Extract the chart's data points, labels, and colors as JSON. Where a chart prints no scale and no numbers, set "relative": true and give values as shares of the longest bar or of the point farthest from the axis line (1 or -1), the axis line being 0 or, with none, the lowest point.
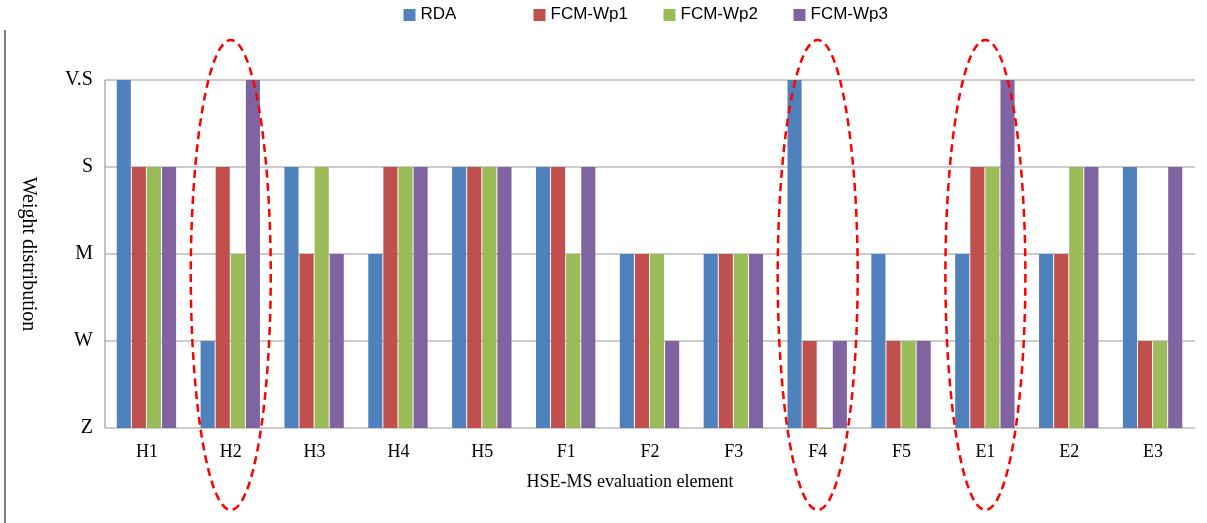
{
  "chart_data": {
    "type": "bar",
    "relative": true,
    "xlabel": "HSE-MS evaluation element",
    "ylabel": "Weight distribution",
    "categories": [
      "H1",
      "H2",
      "H3",
      "H4",
      "H5",
      "F1",
      "F2",
      "F3",
      "F4",
      "F5",
      "E1",
      "E2",
      "E3"
    ],
    "series": [
      {
        "name": "RDA",
        "color": "#4f81bd",
        "values": [
          1,
          0.25,
          0.75,
          0.5,
          0.75,
          0.75,
          0.5,
          0.5,
          1,
          0.5,
          0.5,
          0.5,
          0.75
        ]
      },
      {
        "name": "FCM-Wp1",
        "color": "#c0504d",
        "values": [
          0.75,
          0.75,
          0.5,
          0.75,
          0.75,
          0.75,
          0.5,
          0.5,
          0.25,
          0.25,
          0.75,
          0.5,
          0.25
        ]
      },
      {
        "name": "FCM-Wp2",
        "color": "#9bbb59",
        "values": [
          0.75,
          0.5,
          0.75,
          0.75,
          0.75,
          0.5,
          0.5,
          0.5,
          0,
          0.25,
          0.75,
          0.75,
          0.25
        ]
      },
      {
        "name": "FCM-Wp3",
        "color": "#8064a2",
        "values": [
          0.75,
          1,
          0.5,
          0.75,
          0.75,
          0.75,
          0.25,
          0.5,
          0.25,
          0.25,
          1,
          0.75,
          0.75
        ]
      }
    ],
    "annotations": [
      "Z",
      "W",
      "M",
      "S",
      "V.S"
    ],
    "grid": "y",
    "legend": "top"
  }
}
